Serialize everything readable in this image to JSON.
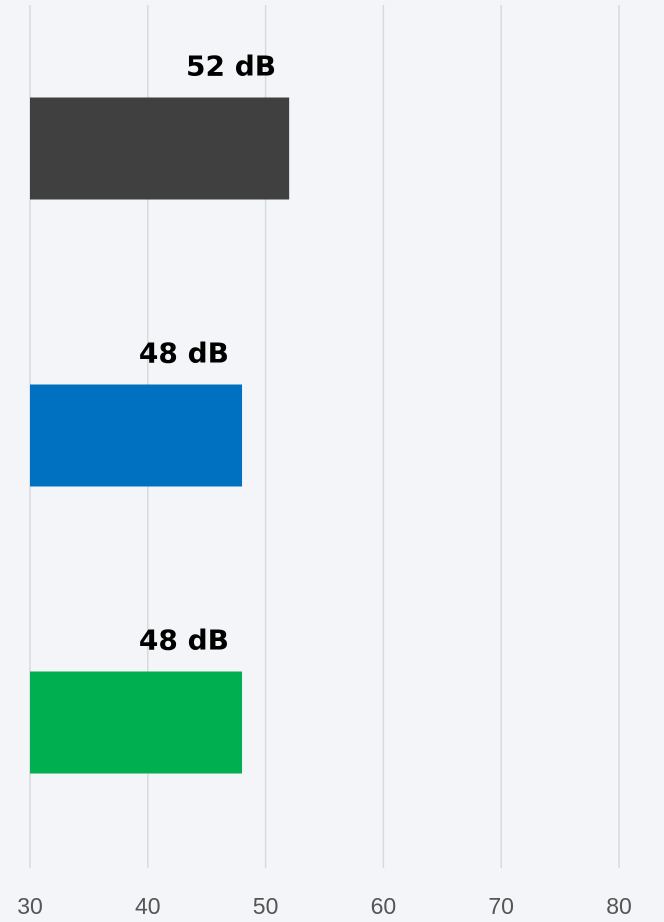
{
  "chart_data": {
    "type": "bar",
    "orientation": "horizontal",
    "values": [
      52,
      48,
      48
    ],
    "value_labels": [
      "52 dB",
      "48 dB",
      "48 dB"
    ],
    "colors": [
      "#404040",
      "#0070c0",
      "#00b050"
    ],
    "xlim": [
      30,
      80
    ],
    "xticks": [
      30,
      40,
      50,
      60,
      70,
      80
    ],
    "grid": true
  }
}
